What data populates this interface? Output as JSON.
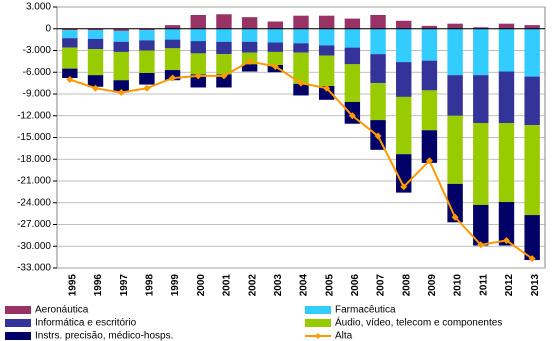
{
  "chart_data": {
    "type": "bar",
    "stacked": true,
    "categories": [
      "1995",
      "1996",
      "1997",
      "1998",
      "1999",
      "2000",
      "2001",
      "2002",
      "2003",
      "2004",
      "2005",
      "2006",
      "2007",
      "2008",
      "2009",
      "2010",
      "2011",
      "2012",
      "2013"
    ],
    "series": [
      {
        "name": "Aeronáutica",
        "color": "#993366",
        "values": [
          -200,
          -200,
          -300,
          -200,
          500,
          1900,
          2000,
          1600,
          1000,
          1800,
          1800,
          1400,
          1900,
          1100,
          400,
          700,
          200,
          700,
          500
        ]
      },
      {
        "name": "Farmacêutica",
        "color": "#33ccff",
        "values": [
          -1100,
          -1200,
          -1500,
          -1400,
          -1500,
          -1700,
          -1800,
          -1800,
          -1900,
          -2000,
          -2300,
          -2600,
          -3500,
          -4600,
          -4400,
          -6400,
          -6400,
          -5900,
          -6600
        ]
      },
      {
        "name": "Informática e escritório",
        "color": "#333399",
        "values": [
          -1300,
          -1400,
          -1400,
          -1400,
          -1200,
          -1700,
          -1700,
          -1500,
          -1300,
          -1300,
          -1400,
          -2300,
          -4000,
          -4800,
          -4100,
          -5600,
          -6600,
          -7100,
          -6700
        ]
      },
      {
        "name": "Áudio, vídeo, telecom e componentes",
        "color": "#99cc00",
        "values": [
          -2900,
          -3600,
          -3900,
          -3100,
          -3000,
          -2900,
          -2800,
          -1600,
          -1800,
          -4300,
          -4200,
          -5200,
          -5100,
          -7900,
          -5500,
          -9400,
          -11300,
          -10900,
          -12400
        ]
      },
      {
        "name": "Instrs. precisão, médico-hosps.",
        "color": "#000066",
        "values": [
          -1300,
          -1600,
          -1700,
          -1600,
          -1400,
          -1800,
          -1800,
          -1000,
          -1000,
          -1600,
          -1900,
          -3000,
          -4100,
          -5300,
          -4500,
          -5300,
          -5600,
          -6000,
          -6200
        ]
      },
      {
        "name": "Alta",
        "color": "#ff9900",
        "type": "line",
        "values": [
          -7000,
          -8200,
          -8800,
          -8200,
          -6800,
          -6500,
          -6500,
          -4500,
          -5200,
          -7500,
          -8200,
          -12000,
          -14800,
          -21800,
          -18200,
          -26000,
          -29800,
          -29200,
          -31700
        ]
      }
    ],
    "ylim": [
      -33000,
      3000
    ],
    "yticks": [
      {
        "value": 3000,
        "label": "3.000"
      },
      0,
      {
        "value": -3000,
        "label": "-3.000"
      },
      {
        "value": -6000,
        "label": "-6.000"
      },
      {
        "value": -9000,
        "label": "-9.000"
      },
      {
        "value": -12000,
        "label": "-12.000"
      },
      {
        "value": -15000,
        "label": "-15.000"
      },
      {
        "value": -18000,
        "label": "-18.000"
      },
      {
        "value": -21000,
        "label": "-21.000"
      },
      {
        "value": -24000,
        "label": "-24.000"
      },
      {
        "value": -27000,
        "label": "-27.000"
      },
      {
        "value": -30000,
        "label": "-30.000"
      },
      {
        "value": -33000,
        "label": "-33.000"
      }
    ],
    "grid": true
  }
}
